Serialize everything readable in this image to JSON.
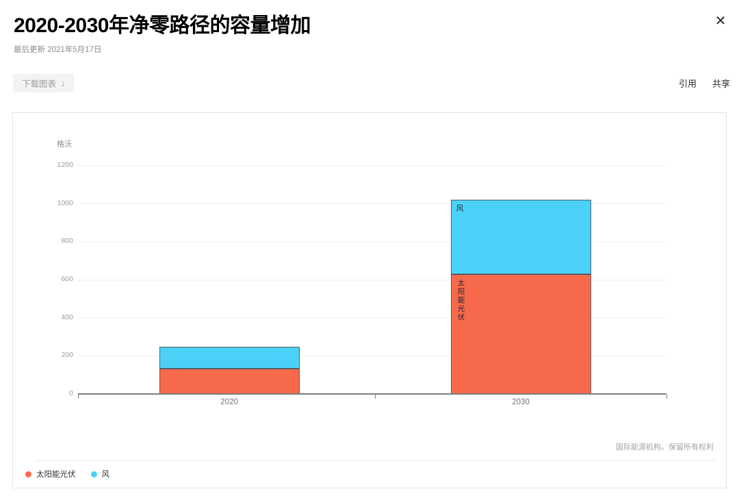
{
  "header": {
    "title": "2020-2030年净零路径的容量增加",
    "last_updated": "最后更新 2021年5月17日"
  },
  "icons": {
    "close": "✕",
    "download_arrow": "↓"
  },
  "toolbar": {
    "download_label": "下载图表",
    "cite_label": "引用",
    "share_label": "共享"
  },
  "chart_data": {
    "type": "bar",
    "stacked": true,
    "title": "2020-2030年净零路径的容量增加",
    "unit_label": "格沃",
    "categories": [
      "2020",
      "2030"
    ],
    "series": [
      {
        "name": "太阳能光伏",
        "color": "#F7694B",
        "values": [
          134,
          630
        ]
      },
      {
        "name": "风",
        "color": "#4BD1F7",
        "values": [
          114,
          390
        ]
      }
    ],
    "ylim": [
      0,
      1200
    ],
    "ytick_step": 200,
    "grid": true,
    "xlabel": "",
    "ylabel": "格沃",
    "legend_position": "bottom-left",
    "annotations": [
      {
        "text": "风",
        "category_index": 1,
        "series_index": 1,
        "vertical": false
      },
      {
        "text": "太阳能光伏",
        "category_index": 1,
        "series_index": 0,
        "vertical": true
      }
    ],
    "source": "国际能源机构。保留所有权利"
  }
}
